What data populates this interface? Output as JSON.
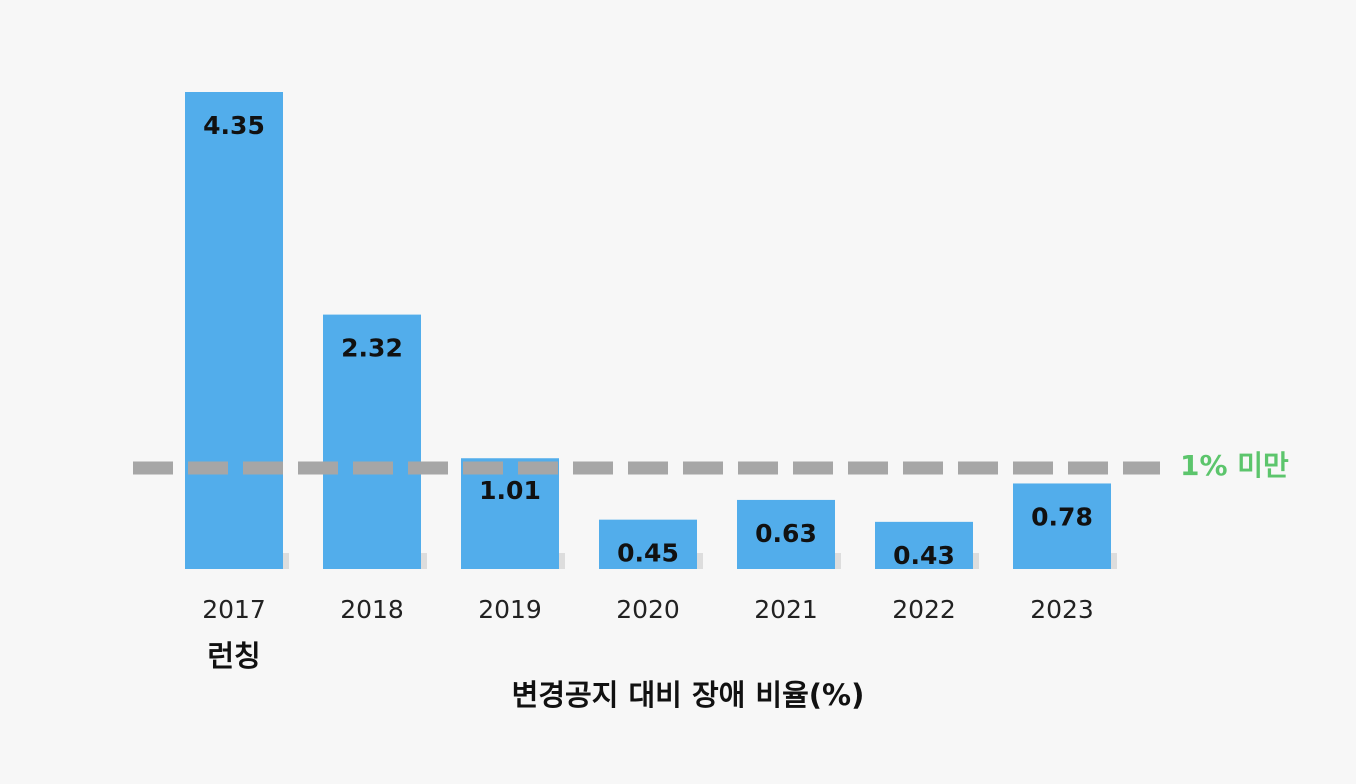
{
  "chart_data": {
    "type": "bar",
    "categories": [
      "2017",
      "2018",
      "2019",
      "2020",
      "2021",
      "2022",
      "2023"
    ],
    "values": [
      4.35,
      2.32,
      1.01,
      0.45,
      0.63,
      0.43,
      0.78
    ],
    "value_labels": [
      "4.35",
      "2.32",
      "1.01",
      "0.45",
      "0.63",
      "0.43",
      "0.78"
    ],
    "title": "",
    "xlabel": "변경공지 대비 장애 비율(%)",
    "ylabel": "",
    "ylim": [
      0,
      4.35
    ],
    "grid": false,
    "legend": "none",
    "threshold": {
      "value": 1,
      "label": "1% 미만",
      "color": "#5cc56c",
      "line_color": "#a6a6a6"
    },
    "annotations": [
      {
        "category": "2017",
        "text": "런칭"
      }
    ],
    "bar_color": "#52adeb"
  }
}
